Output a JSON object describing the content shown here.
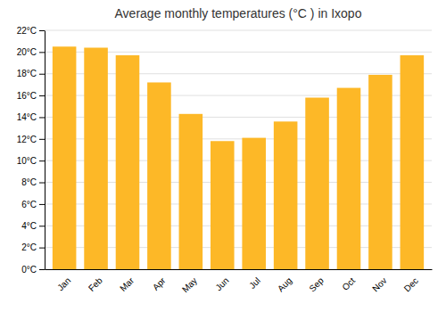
{
  "chart_data": {
    "type": "bar",
    "title": "Average monthly temperatures (°C ) in Ixopo",
    "categories": [
      "Jan",
      "Feb",
      "Mar",
      "Apr",
      "May",
      "Jun",
      "Jul",
      "Aug",
      "Sep",
      "Oct",
      "Nov",
      "Dec"
    ],
    "values": [
      20.5,
      20.4,
      19.7,
      17.2,
      14.3,
      11.8,
      12.1,
      13.6,
      15.8,
      16.7,
      17.9,
      19.7
    ],
    "color": "#FDB827",
    "ylim": [
      0,
      22
    ],
    "yticks": [
      {
        "value": 0,
        "label": "0°C"
      },
      {
        "value": 2,
        "label": "2°C"
      },
      {
        "value": 4,
        "label": "4°C"
      },
      {
        "value": 6,
        "label": "6°C"
      },
      {
        "value": 8,
        "label": "8°C"
      },
      {
        "value": 10,
        "label": "10°C"
      },
      {
        "value": 12,
        "label": "12°C"
      },
      {
        "value": 14,
        "label": "14°C"
      },
      {
        "value": 16,
        "label": "16°C"
      },
      {
        "value": 18,
        "label": "18°C"
      },
      {
        "value": 20,
        "label": "20°C"
      },
      {
        "value": 22,
        "label": "22°C"
      }
    ],
    "grid": true
  }
}
